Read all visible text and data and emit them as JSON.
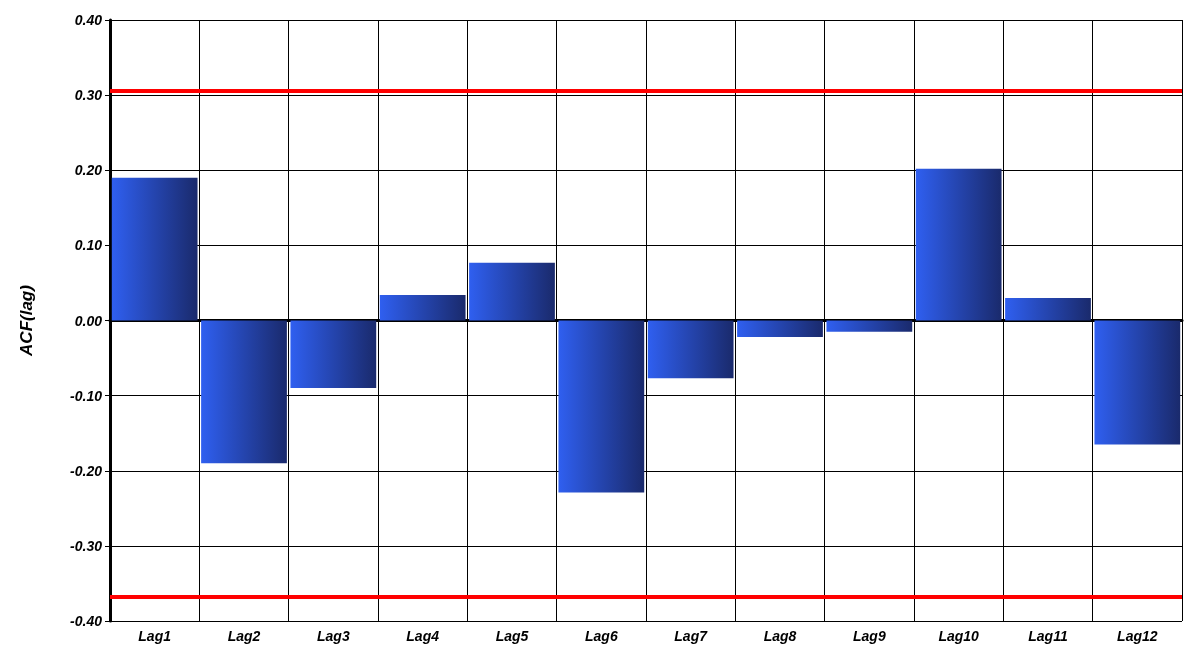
{
  "chart_data": {
    "type": "bar",
    "ylabel": "ACF(lag)",
    "categories": [
      "Lag1",
      "Lag2",
      "Lag3",
      "Lag4",
      "Lag5",
      "Lag6",
      "Lag7",
      "Lag8",
      "Lag9",
      "Lag10",
      "Lag11",
      "Lag12"
    ],
    "values": [
      0.19,
      -0.19,
      -0.09,
      0.034,
      0.077,
      -0.229,
      -0.077,
      -0.022,
      -0.015,
      0.202,
      0.03,
      -0.165
    ],
    "color": "#2f5ff0",
    "ylim": [
      -0.4,
      0.4
    ],
    "yticks": [
      {
        "value": -0.4,
        "label": "-0.40"
      },
      {
        "value": -0.3,
        "label": "-0.30"
      },
      {
        "value": -0.2,
        "label": "-0.20"
      },
      {
        "value": -0.1,
        "label": "-0.10"
      },
      {
        "value": 0,
        "label": "0.00"
      },
      {
        "value": 0.1,
        "label": "0.10"
      },
      {
        "value": 0.2,
        "label": "0.20"
      },
      {
        "value": 0.3,
        "label": "0.30"
      },
      {
        "value": 0.4,
        "label": "0.40"
      }
    ],
    "ref_lines": [
      {
        "axis": "y",
        "value": 0.306,
        "label": null,
        "color": "#ff0000"
      },
      {
        "axis": "y",
        "value": -0.368,
        "label": null,
        "color": "#ff0000"
      }
    ],
    "grid": true
  }
}
